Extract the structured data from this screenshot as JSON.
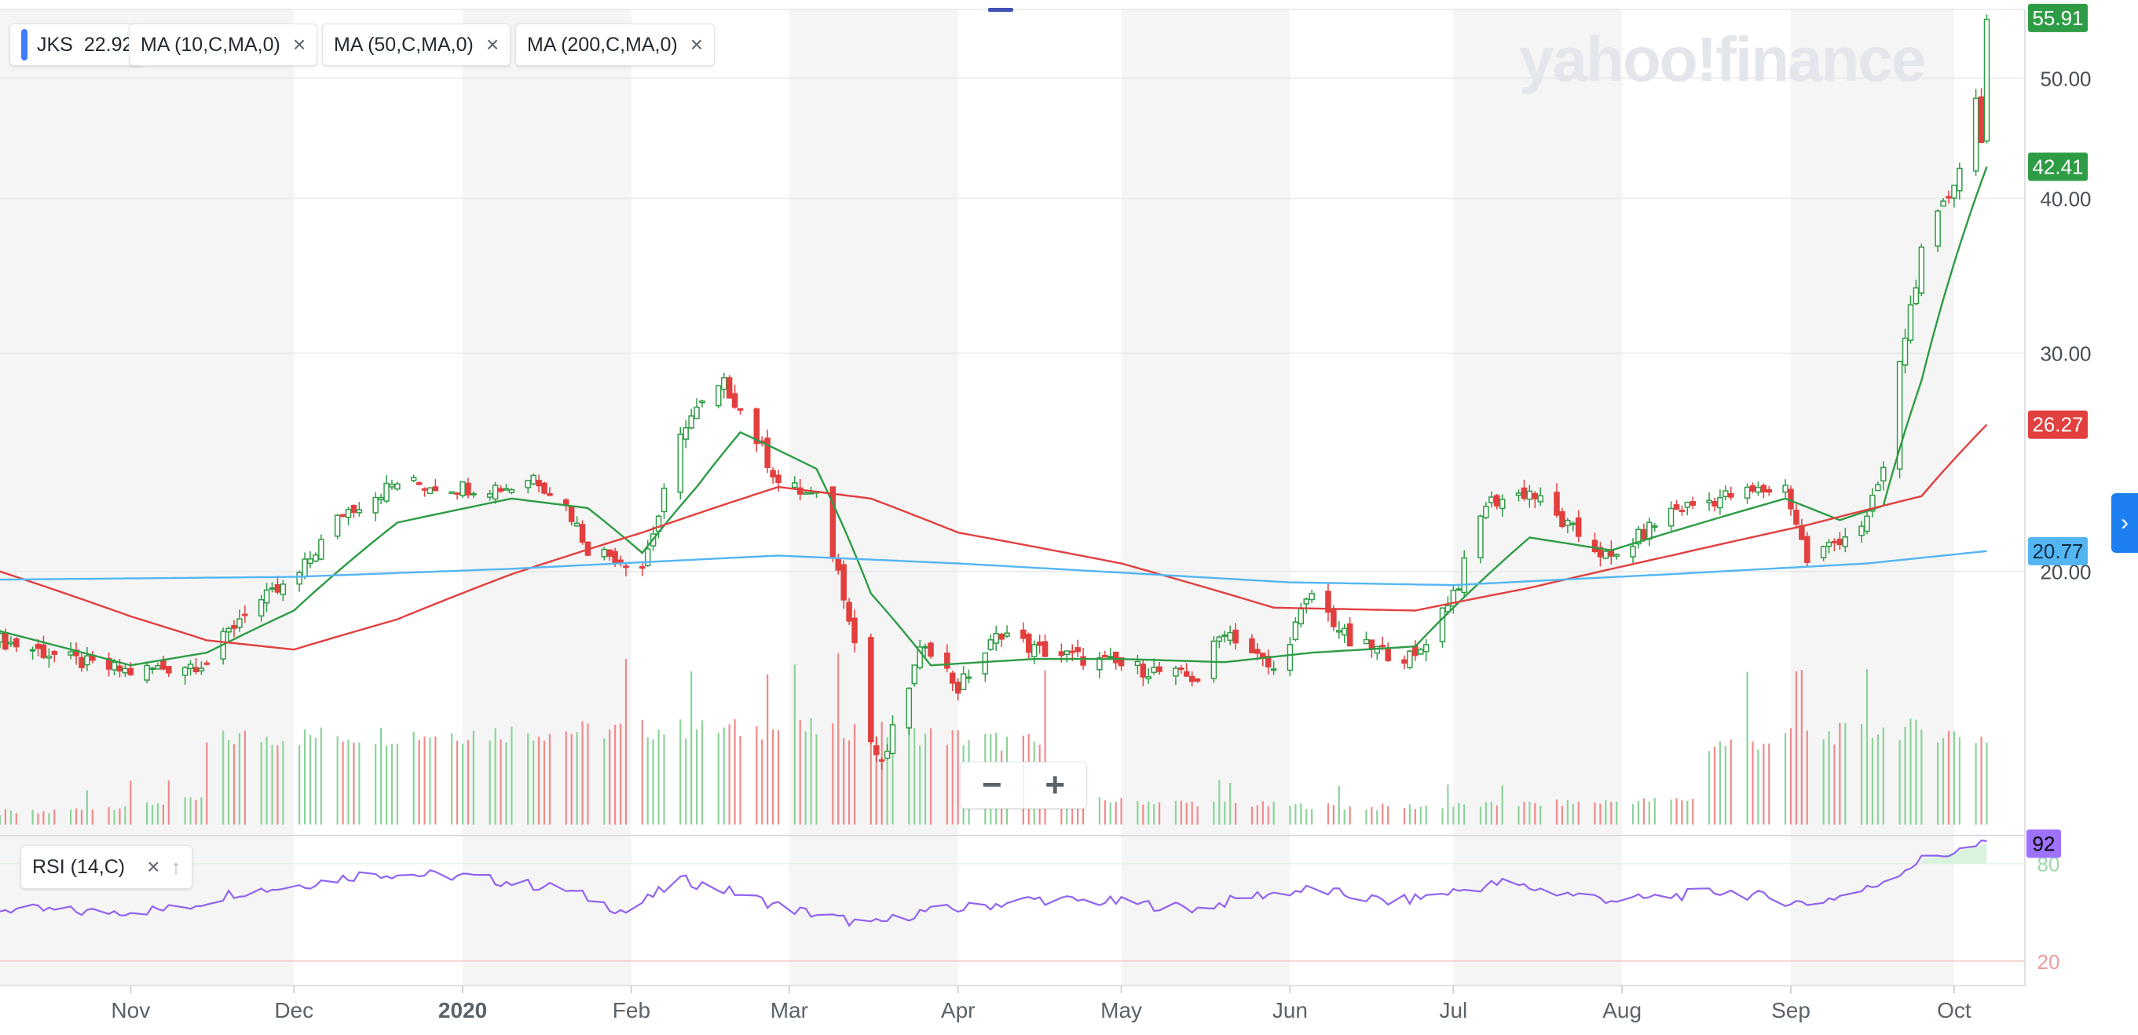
{
  "header": {
    "chips": [
      {
        "label": "JKS",
        "value": "22.92"
      },
      {
        "label": "MA (10,C,MA,0)"
      },
      {
        "label": "MA (50,C,MA,0)"
      },
      {
        "label": "MA (200,C,MA,0)"
      }
    ],
    "close_icon": "×",
    "watermark": "yahoo!finance"
  },
  "rsi_chip": {
    "label": "RSI (14,C)",
    "close_icon": "×",
    "up_icon": "↑"
  },
  "zoom": {
    "minus": "−",
    "plus": "+"
  },
  "side_toggle_icon": "›",
  "colors": {
    "up": "#2e9c45",
    "down": "#e23f3f",
    "ma10": "#2e9c45",
    "ma50": "#e23f3f",
    "ma200": "#53b6f3",
    "rsi": "#9163f0",
    "rsi_badge": "#9e71ff"
  },
  "chart_data": [
    {
      "type": "candlestick",
      "title": "",
      "symbol": "JKS",
      "x_tick_labels": [
        "Nov",
        "Dec",
        "2020",
        "Feb",
        "Mar",
        "Apr",
        "May",
        "Jun",
        "Jul",
        "Aug",
        "Sep",
        "Oct"
      ],
      "x_ticks": [
        "2019-11-01",
        "2019-12-01",
        "2020-01-01",
        "2020-02-01",
        "2020-03-01",
        "2020-04-01",
        "2020-05-01",
        "2020-06-01",
        "2020-07-01",
        "2020-08-01",
        "2020-09-01",
        "2020-10-01"
      ],
      "x_range": [
        "2019-10-08",
        "2020-10-14"
      ],
      "y_tick_labels": [
        "20.00",
        "30.00",
        "40.00",
        "50.00"
      ],
      "y_ticks": [
        20,
        30,
        40,
        50
      ],
      "ylim": [
        12.5,
        56.8
      ],
      "grid": true,
      "price_labels": [
        {
          "text": "55.91",
          "value": 55.91,
          "color": "#2e9c45"
        },
        {
          "text": "42.41",
          "value": 42.41,
          "color": "#2e9c45"
        },
        {
          "text": "26.27",
          "value": 26.27,
          "color": "#e23f3f"
        },
        {
          "text": "20.77",
          "value": 20.77,
          "color": "#53b6f3"
        }
      ],
      "series": [
        {
          "name": "JKS",
          "close_points": [
            [
              "2019-10-08",
              17.6
            ],
            [
              "2019-10-25",
              16.8
            ],
            [
              "2019-11-01",
              16.6
            ],
            [
              "2019-11-15",
              16.9
            ],
            [
              "2019-11-22",
              18.6
            ],
            [
              "2019-12-01",
              19.6
            ],
            [
              "2019-12-10",
              22.3
            ],
            [
              "2019-12-20",
              23.6
            ],
            [
              "2019-12-31",
              23.4
            ],
            [
              "2020-01-10",
              23.4
            ],
            [
              "2020-01-14",
              23.9
            ],
            [
              "2020-01-20",
              22.6
            ],
            [
              "2020-01-24",
              20.9
            ],
            [
              "2020-02-03",
              20.2
            ],
            [
              "2020-02-06",
              22.2
            ],
            [
              "2020-02-11",
              26.4
            ],
            [
              "2020-02-18",
              28.3
            ],
            [
              "2020-02-20",
              27.5
            ],
            [
              "2020-02-28",
              23.6
            ],
            [
              "2020-03-06",
              22.9
            ],
            [
              "2020-03-12",
              18.5
            ],
            [
              "2020-03-16",
              14.6
            ],
            [
              "2020-03-18",
              13.9
            ],
            [
              "2020-03-26",
              17.6
            ],
            [
              "2020-04-01",
              16.1
            ],
            [
              "2020-04-09",
              17.9
            ],
            [
              "2020-04-15",
              17.3
            ],
            [
              "2020-05-01",
              16.8
            ],
            [
              "2020-05-15",
              16.4
            ],
            [
              "2020-05-20",
              18.0
            ],
            [
              "2020-05-29",
              16.6
            ],
            [
              "2020-06-05",
              19.2
            ],
            [
              "2020-06-12",
              17.5
            ],
            [
              "2020-06-24",
              17.0
            ],
            [
              "2020-07-02",
              19.6
            ],
            [
              "2020-07-07",
              22.7
            ],
            [
              "2020-07-15",
              23.2
            ],
            [
              "2020-07-21",
              21.9
            ],
            [
              "2020-07-30",
              20.4
            ],
            [
              "2020-08-10",
              22.4
            ],
            [
              "2020-08-20",
              23.0
            ],
            [
              "2020-08-31",
              23.4
            ],
            [
              "2020-09-04",
              20.4
            ],
            [
              "2020-09-15",
              22.0
            ],
            [
              "2020-09-18",
              24.2
            ],
            [
              "2020-09-22",
              31.0
            ],
            [
              "2020-09-25",
              36.0
            ],
            [
              "2020-09-30",
              40.2
            ],
            [
              "2020-10-02",
              42.5
            ],
            [
              "2020-10-05",
              48.0
            ],
            [
              "2020-10-06",
              45.0
            ],
            [
              "2020-10-07",
              55.6
            ]
          ]
        },
        {
          "name": "MA (10,C,MA,0)",
          "points": [
            [
              "2019-10-08",
              17.9
            ],
            [
              "2019-11-01",
              16.8
            ],
            [
              "2019-11-15",
              17.2
            ],
            [
              "2019-12-01",
              18.6
            ],
            [
              "2019-12-20",
              21.9
            ],
            [
              "2020-01-10",
              22.9
            ],
            [
              "2020-01-24",
              22.5
            ],
            [
              "2020-02-03",
              20.7
            ],
            [
              "2020-02-13",
              23.4
            ],
            [
              "2020-02-21",
              25.9
            ],
            [
              "2020-03-06",
              24.2
            ],
            [
              "2020-03-16",
              19.2
            ],
            [
              "2020-03-27",
              16.8
            ],
            [
              "2020-04-15",
              17.0
            ],
            [
              "2020-05-01",
              17.0
            ],
            [
              "2020-05-20",
              16.9
            ],
            [
              "2020-06-05",
              17.2
            ],
            [
              "2020-06-24",
              17.4
            ],
            [
              "2020-07-15",
              21.3
            ],
            [
              "2020-07-30",
              20.8
            ],
            [
              "2020-08-31",
              22.9
            ],
            [
              "2020-09-10",
              22.0
            ],
            [
              "2020-09-18",
              22.6
            ],
            [
              "2020-09-25",
              28.5
            ],
            [
              "2020-10-07",
              42.41
            ]
          ]
        },
        {
          "name": "MA (50,C,MA,0)",
          "points": [
            [
              "2019-10-08",
              20.0
            ],
            [
              "2019-11-01",
              18.4
            ],
            [
              "2019-11-15",
              17.6
            ],
            [
              "2019-12-01",
              17.3
            ],
            [
              "2019-12-20",
              18.3
            ],
            [
              "2020-01-10",
              19.9
            ],
            [
              "2020-02-03",
              21.5
            ],
            [
              "2020-02-28",
              23.4
            ],
            [
              "2020-03-16",
              22.9
            ],
            [
              "2020-04-01",
              21.5
            ],
            [
              "2020-05-01",
              20.3
            ],
            [
              "2020-05-29",
              18.7
            ],
            [
              "2020-06-24",
              18.6
            ],
            [
              "2020-07-15",
              19.4
            ],
            [
              "2020-08-10",
              20.6
            ],
            [
              "2020-09-04",
              21.8
            ],
            [
              "2020-09-25",
              23.0
            ],
            [
              "2020-10-07",
              26.27
            ]
          ]
        },
        {
          "name": "MA (200,C,MA,0)",
          "points": [
            [
              "2019-10-08",
              19.7
            ],
            [
              "2019-12-01",
              19.8
            ],
            [
              "2020-01-10",
              20.1
            ],
            [
              "2020-02-28",
              20.6
            ],
            [
              "2020-04-01",
              20.3
            ],
            [
              "2020-06-01",
              19.6
            ],
            [
              "2020-07-01",
              19.5
            ],
            [
              "2020-08-10",
              19.9
            ],
            [
              "2020-09-15",
              20.3
            ],
            [
              "2020-10-07",
              20.77
            ]
          ]
        }
      ],
      "volume_points": [
        [
          "2019-10-15",
          0.3
        ],
        [
          "2019-11-20",
          0.9
        ],
        [
          "2020-02-06",
          1.0
        ],
        [
          "2020-03-13",
          1.0
        ],
        [
          "2020-06-15",
          0.5
        ],
        [
          "2020-07-10",
          0.6
        ],
        [
          "2020-09-20",
          1.0
        ],
        [
          "2020-09-25",
          1.0
        ],
        [
          "2020-10-05",
          0.9
        ]
      ]
    },
    {
      "type": "line",
      "title": "",
      "indicator": "RSI (14,C)",
      "y_tick_labels": [
        "80",
        "20"
      ],
      "ylim": [
        5,
        97
      ],
      "current_value": "92",
      "series": [
        {
          "name": "RSI (14,C)",
          "points": [
            [
              "2019-10-08",
              52
            ],
            [
              "2019-10-25",
              50
            ],
            [
              "2019-11-10",
              52
            ],
            [
              "2019-11-20",
              62
            ],
            [
              "2019-12-01",
              66
            ],
            [
              "2019-12-15",
              74
            ],
            [
              "2020-01-01",
              72
            ],
            [
              "2020-01-20",
              64
            ],
            [
              "2020-01-31",
              50
            ],
            [
              "2020-02-10",
              70
            ],
            [
              "2020-02-20",
              62
            ],
            [
              "2020-03-01",
              52
            ],
            [
              "2020-03-16",
              42
            ],
            [
              "2020-03-25",
              50
            ],
            [
              "2020-04-01",
              52
            ],
            [
              "2020-04-15",
              58
            ],
            [
              "2020-05-01",
              56
            ],
            [
              "2020-05-15",
              52
            ],
            [
              "2020-05-25",
              60
            ],
            [
              "2020-06-05",
              64
            ],
            [
              "2020-06-20",
              56
            ],
            [
              "2020-07-10",
              68
            ],
            [
              "2020-07-20",
              62
            ],
            [
              "2020-08-01",
              57
            ],
            [
              "2020-08-20",
              63
            ],
            [
              "2020-09-04",
              55
            ],
            [
              "2020-09-15",
              64
            ],
            [
              "2020-09-25",
              82
            ],
            [
              "2020-10-07",
              92
            ]
          ]
        }
      ]
    }
  ]
}
